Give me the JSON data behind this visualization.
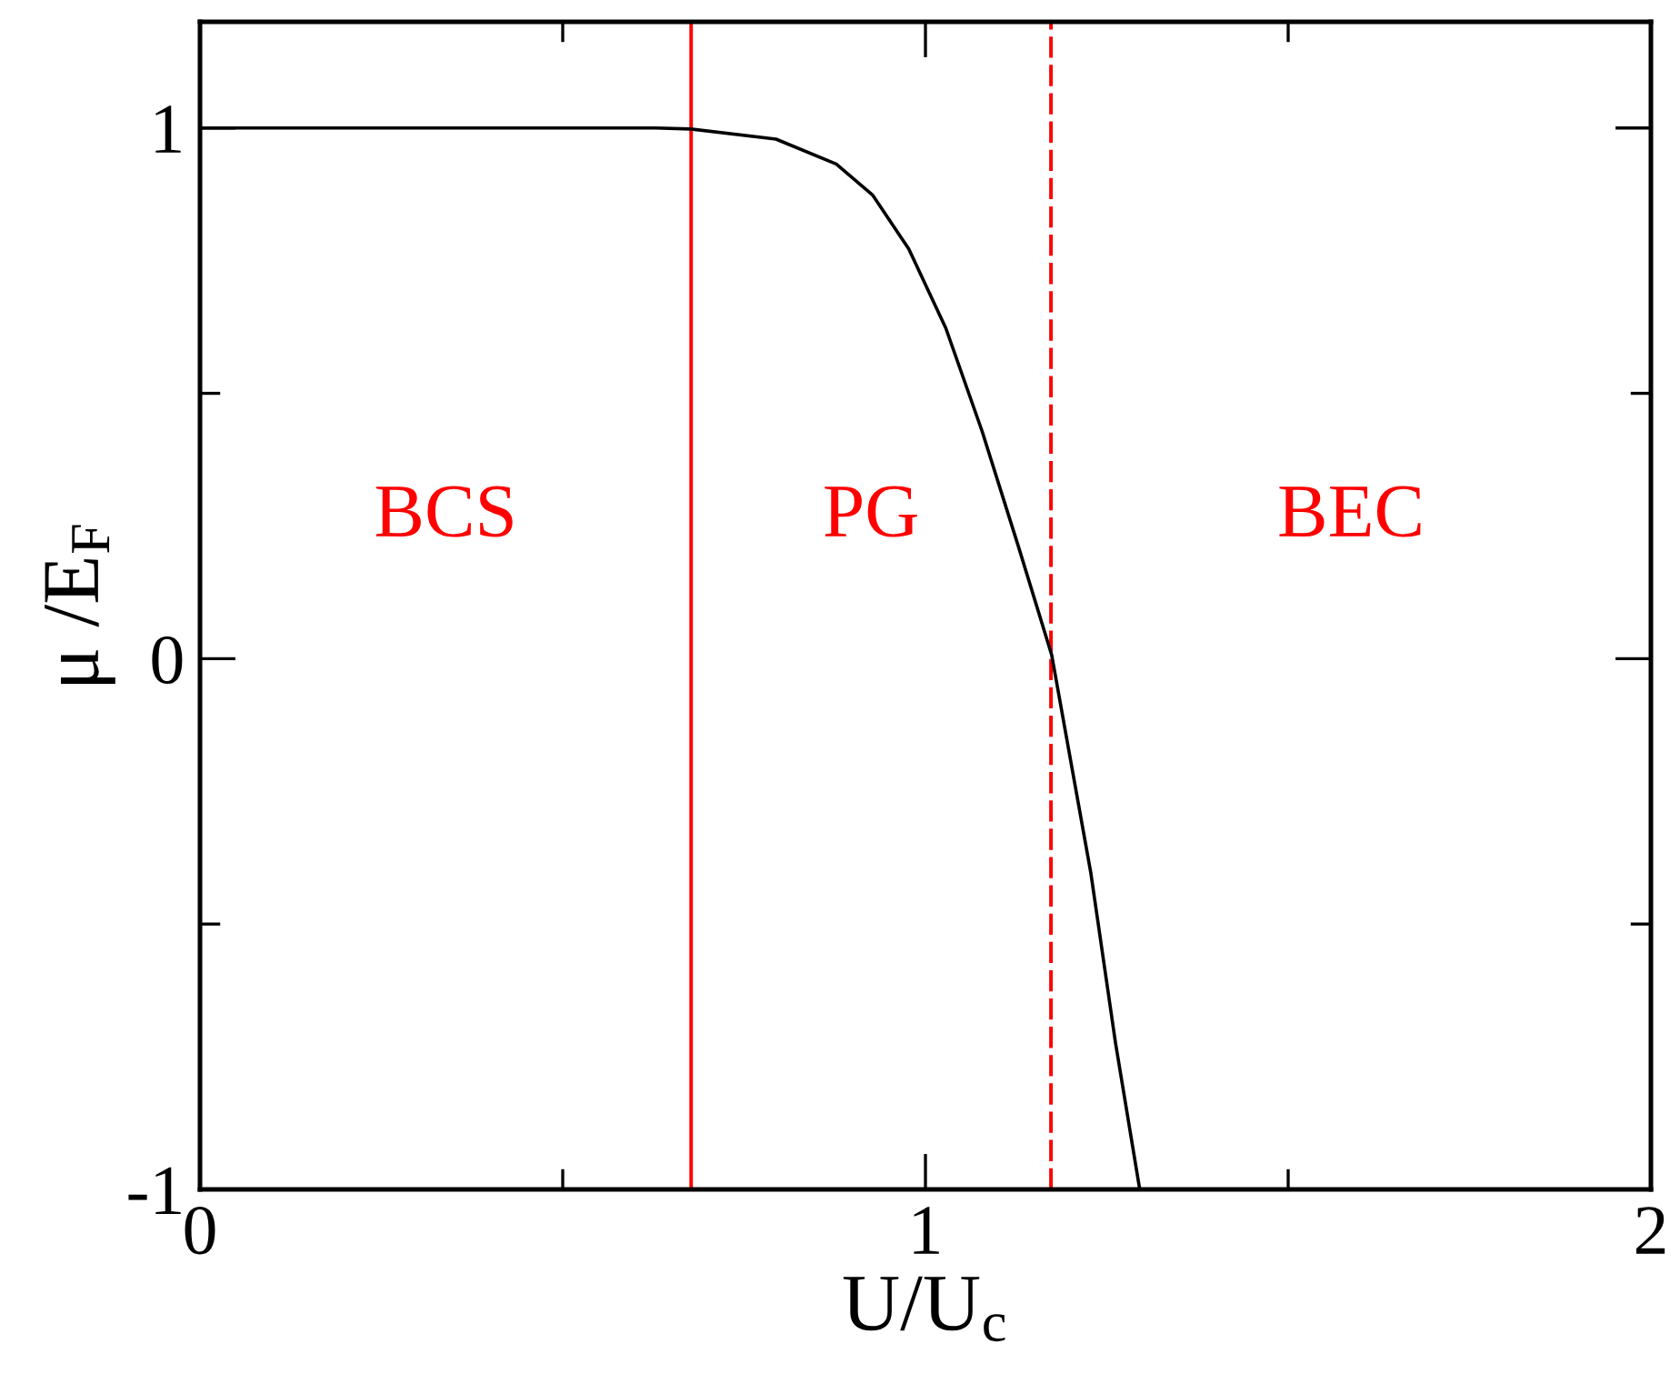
{
  "chart_data": {
    "type": "line",
    "xlabel": "U/U$_{c}$",
    "ylabel": "μ /E$_{F}$",
    "xlim": [
      0,
      2
    ],
    "ylim": [
      -1,
      1.2
    ],
    "xticks": [
      0,
      {
        "value": 0.5,
        "label": null
      },
      1,
      {
        "value": 1.5,
        "label": null
      },
      2
    ],
    "yticks": [
      -1,
      {
        "value": -0.5,
        "label": null
      },
      0,
      {
        "value": 0.5,
        "label": null
      },
      1
    ],
    "grid": false,
    "legend": false,
    "marker": "none",
    "line_style": "solid",
    "series": [
      {
        "color": "#000000",
        "x": [
          0,
          0.627,
          0.677,
          0.794,
          0.877,
          0.927,
          0.977,
          1.028,
          1.078,
          1.128,
          1.174,
          1.228,
          1.262,
          1.295
        ],
        "values": [
          1.0,
          1.0,
          0.998,
          0.979,
          0.932,
          0.874,
          0.772,
          0.623,
          0.429,
          0.212,
          0.007,
          -0.404,
          -0.724,
          -0.997
        ]
      }
    ],
    "ref_lines": [
      {
        "axis": "x",
        "value": 0.677,
        "color": "#ff0000",
        "line_style": "solid"
      },
      {
        "axis": "x",
        "value": 1.173,
        "color": "#ff0000",
        "line_style": "dashed"
      }
    ],
    "annotations": [
      "BCS",
      "PG",
      "BEC"
    ]
  }
}
